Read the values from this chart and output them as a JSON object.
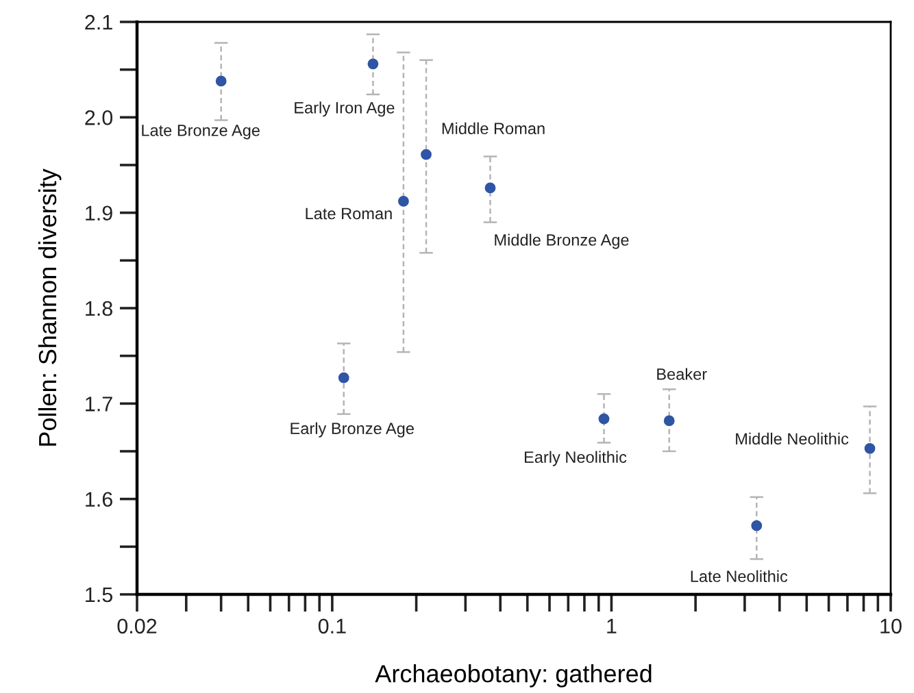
{
  "chart_data": {
    "type": "scatter",
    "xlabel": "Archaeobotany: gathered",
    "ylabel": "Pollen: Shannon diversity",
    "log": "x",
    "grid": false,
    "legend": false,
    "marker": "circle",
    "x": [
      0.04,
      0.14,
      0.18,
      0.217,
      0.368,
      0.11,
      0.94,
      1.61,
      3.31,
      8.42
    ],
    "series": [
      {
        "color": "#2f55a4",
        "values": [
          2.038,
          2.056,
          1.912,
          1.961,
          1.926,
          1.727,
          1.684,
          1.682,
          1.572,
          1.653
        ],
        "errors": [
          [
            1.997,
            2.078
          ],
          [
            2.024,
            2.087
          ],
          [
            1.754,
            2.068
          ],
          [
            1.858,
            2.06
          ],
          [
            1.89,
            1.959
          ],
          [
            1.689,
            1.763
          ],
          [
            1.659,
            1.71
          ],
          [
            1.65,
            1.715
          ],
          [
            1.537,
            1.602
          ],
          [
            1.606,
            1.697
          ]
        ]
      }
    ],
    "annotations": [
      {
        "text": "Late Bronze Age",
        "x": 0.04,
        "y": 2.038
      },
      {
        "text": "Early Iron Age",
        "x": 0.14,
        "y": 2.056
      },
      {
        "text": "Late Roman",
        "x": 0.18,
        "y": 1.912
      },
      {
        "text": "Middle Roman",
        "x": 0.217,
        "y": 1.961
      },
      {
        "text": "Middle Bronze Age",
        "x": 0.368,
        "y": 1.926
      },
      {
        "text": "Early Bronze Age",
        "x": 0.11,
        "y": 1.727
      },
      {
        "text": "Early Neolithic",
        "x": 0.94,
        "y": 1.684
      },
      {
        "text": "Beaker",
        "x": 1.61,
        "y": 1.682
      },
      {
        "text": "Late Neolithic",
        "x": 3.31,
        "y": 1.572
      },
      {
        "text": "Middle Neolithic",
        "x": 8.42,
        "y": 1.653
      }
    ],
    "xlim": [
      0.02,
      10
    ],
    "xticks": [
      0.02,
      {
        "value": 0.03,
        "label": null
      },
      {
        "value": 0.04,
        "label": null
      },
      {
        "value": 0.05,
        "label": null
      },
      {
        "value": 0.06,
        "label": null
      },
      {
        "value": 0.07,
        "label": null
      },
      {
        "value": 0.08,
        "label": null
      },
      {
        "value": 0.09,
        "label": null
      },
      0.1,
      {
        "value": 0.2,
        "label": null
      },
      {
        "value": 0.3,
        "label": null
      },
      {
        "value": 0.4,
        "label": null
      },
      {
        "value": 0.5,
        "label": null
      },
      {
        "value": 0.6,
        "label": null
      },
      {
        "value": 0.7,
        "label": null
      },
      {
        "value": 0.8,
        "label": null
      },
      {
        "value": 0.9,
        "label": null
      },
      1,
      {
        "value": 2,
        "label": null
      },
      {
        "value": 3,
        "label": null
      },
      {
        "value": 4,
        "label": null
      },
      {
        "value": 5,
        "label": null
      },
      {
        "value": 6,
        "label": null
      },
      {
        "value": 7,
        "label": null
      },
      {
        "value": 8,
        "label": null
      },
      {
        "value": 9,
        "label": null
      },
      10
    ],
    "ylim": [
      1.5,
      2.1
    ],
    "yticks": [
      1.5,
      {
        "value": 1.55,
        "label": null
      },
      1.6,
      {
        "value": 1.65,
        "label": null
      },
      1.7,
      {
        "value": 1.75,
        "label": null
      },
      1.8,
      {
        "value": 1.85,
        "label": null
      },
      1.9,
      {
        "value": 1.95,
        "label": null
      },
      {
        "value": 2.0,
        "label": "2.0"
      },
      {
        "value": 2.05,
        "label": null
      },
      2.1
    ]
  }
}
